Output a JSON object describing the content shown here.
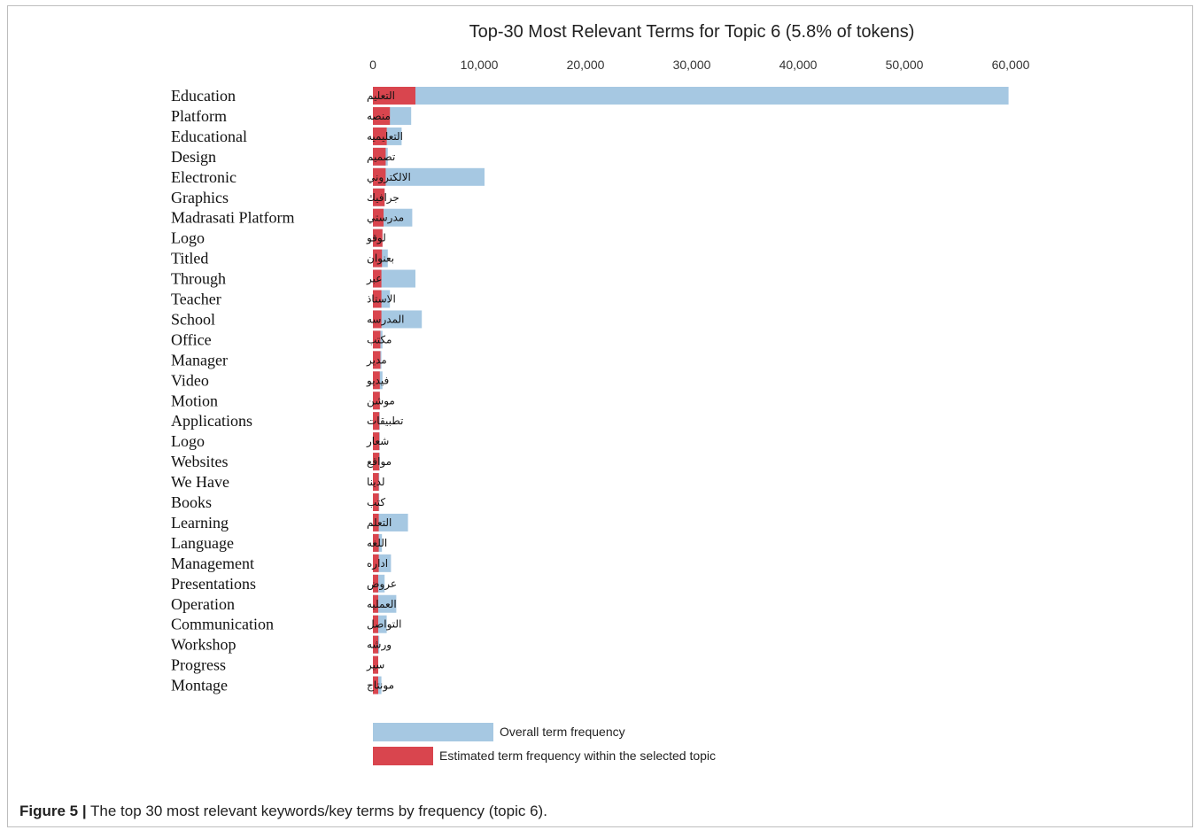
{
  "caption": {
    "label": "Figure 5 |",
    "text": "The top 30 most relevant keywords/key terms by frequency (topic 6)."
  },
  "chart_data": {
    "type": "bar",
    "orientation": "horizontal",
    "title": "Top-30 Most Relevant Terms for Topic 6 (5.8% of tokens)",
    "xlim": [
      0,
      60000
    ],
    "x_ticks": [
      "0",
      "10,000",
      "20,000",
      "30,000",
      "40,000",
      "50,000",
      "60,000"
    ],
    "x_tick_values": [
      0,
      10000,
      20000,
      30000,
      40000,
      50000,
      60000
    ],
    "categories_en": [
      "Education",
      "Platform",
      "Educational",
      "Design",
      "Electronic",
      "Graphics",
      "Madrasati Platform",
      "Logo",
      "Titled",
      "Through",
      "Teacher",
      "School",
      "Office",
      "Manager",
      "Video",
      "Motion",
      "Applications",
      "Logo",
      "Websites",
      "We Have",
      "Books",
      "Learning",
      "Language",
      "Management",
      "Presentations",
      "Operation",
      "Communication",
      "Workshop",
      "Progress",
      "Montage"
    ],
    "categories_ar": [
      "التعليم",
      "منصه",
      "التعليميه",
      "تصميم",
      "الالكتروني",
      "جرافيك",
      "مدرستي",
      "لوقو",
      "بعنوان",
      "عبر",
      "الاستاذ",
      "المدرسه",
      "مكتب",
      "مدير",
      "فيديو",
      "موشن",
      "تطبيقات",
      "شعار",
      "مواقع",
      "لدينا",
      "كتب",
      "التعلم",
      "اللغه",
      "اداره",
      "عروض",
      "العمليه",
      "التواصل",
      "ورشه",
      "سير",
      "مونتاج"
    ],
    "series": [
      {
        "name": "Overall term frequency",
        "color": "#a6c8e2",
        "values": [
          59800,
          3600,
          2700,
          1400,
          10500,
          1100,
          3700,
          900,
          1400,
          4000,
          1600,
          4600,
          900,
          800,
          900,
          650,
          650,
          650,
          650,
          600,
          600,
          3300,
          850,
          1700,
          1100,
          2200,
          1300,
          600,
          500,
          800
        ]
      },
      {
        "name": "Estimated term frequency within the selected topic",
        "color": "#d9454e",
        "values": [
          4000,
          1600,
          1300,
          1200,
          1200,
          1100,
          1000,
          900,
          850,
          800,
          800,
          800,
          700,
          700,
          650,
          650,
          600,
          600,
          600,
          550,
          550,
          550,
          550,
          550,
          500,
          500,
          500,
          500,
          500,
          500
        ]
      }
    ],
    "grid": false,
    "legend_position": "bottom-left"
  }
}
